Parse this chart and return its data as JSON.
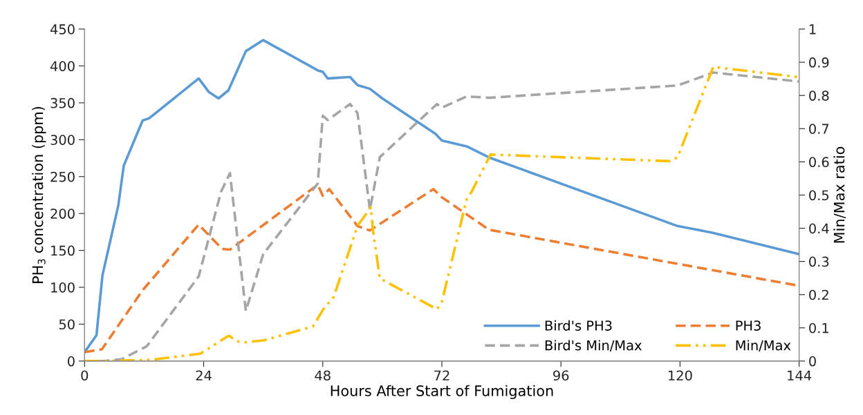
{
  "chart_data": {
    "type": "line",
    "xlabel": "Hours After Start of Fumigation",
    "ylabel": "PH$_{3}$ concentration (ppm)",
    "y2label": "Min/Max ratio",
    "xlim": [
      0,
      144
    ],
    "xticks": [
      0,
      24,
      48,
      72,
      96,
      120,
      144
    ],
    "ylim": [
      0,
      450
    ],
    "yticks": [
      0,
      50,
      100,
      150,
      200,
      250,
      300,
      350,
      400,
      450
    ],
    "y2lim": [
      0,
      1
    ],
    "y2ticks": [
      0,
      0.1,
      0.2,
      0.3,
      0.4,
      0.5,
      0.6,
      0.7,
      0.8,
      0.9,
      1
    ],
    "grid": false,
    "legend": "bottom right",
    "marker": "none",
    "series": [
      {
        "name": "Bird's PH3",
        "color": "#5b9bd5",
        "line_style": "solid",
        "x": [
          0,
          2.4,
          3.6,
          6.8,
          7.9,
          11.7,
          13,
          23,
          25,
          27,
          29,
          32.5,
          36,
          47,
          48,
          49,
          53.5,
          55,
          57.5,
          60,
          70.7,
          72,
          77,
          81.5,
          119.5,
          126.5,
          144
        ],
        "values": [
          12,
          35,
          116,
          211,
          265,
          326,
          329,
          383,
          365,
          356,
          367,
          420,
          435,
          394,
          392,
          383,
          385,
          374,
          369,
          356,
          308,
          299,
          291,
          276,
          183,
          174,
          145
        ]
      },
      {
        "name": "PH3",
        "color": "#ed7d31",
        "line_style": "dashed",
        "x": [
          0,
          3.5,
          11.7,
          23,
          27.7,
          29.3,
          47,
          48,
          49.3,
          55,
          57.5,
          70.3,
          72,
          81.5,
          144
        ],
        "values": [
          12,
          16,
          96,
          185,
          152,
          151,
          239,
          224,
          233,
          183,
          177,
          233,
          222,
          178,
          102
        ]
      },
      {
        "name": "Bird's Min/Max",
        "color": "#a5a5a5",
        "line_style": "dashed",
        "axis": "y2",
        "x": [
          0,
          4,
          7.5,
          12.5,
          23,
          27.5,
          29.3,
          32.5,
          36,
          47,
          48,
          49,
          53.5,
          55,
          57.5,
          59.5,
          71,
          72,
          77,
          81.5,
          119.5,
          126.7,
          144
        ],
        "values": [
          0,
          0,
          0.006,
          0.044,
          0.255,
          0.51,
          0.566,
          0.151,
          0.322,
          0.535,
          0.739,
          0.726,
          0.774,
          0.747,
          0.456,
          0.614,
          0.774,
          0.763,
          0.797,
          0.793,
          0.83,
          0.869,
          0.842
        ]
      },
      {
        "name": "Min/Max",
        "color": "#ffc000",
        "line_style": "dashdotdot",
        "axis": "y2",
        "x": [
          0,
          4,
          13.5,
          23.3,
          28.9,
          29.3,
          30.5,
          32,
          36,
          46,
          48.2,
          50.2,
          55,
          57.7,
          58.1,
          59.5,
          71,
          72,
          77,
          78,
          81.8,
          118,
          119.5,
          126.7,
          144
        ],
        "values": [
          0,
          0,
          0.004,
          0.022,
          0.075,
          0.075,
          0.06,
          0.056,
          0.062,
          0.104,
          0.158,
          0.193,
          0.407,
          0.463,
          0.396,
          0.249,
          0.156,
          0.178,
          0.488,
          0.51,
          0.622,
          0.602,
          0.614,
          0.886,
          0.855
        ]
      }
    ]
  }
}
